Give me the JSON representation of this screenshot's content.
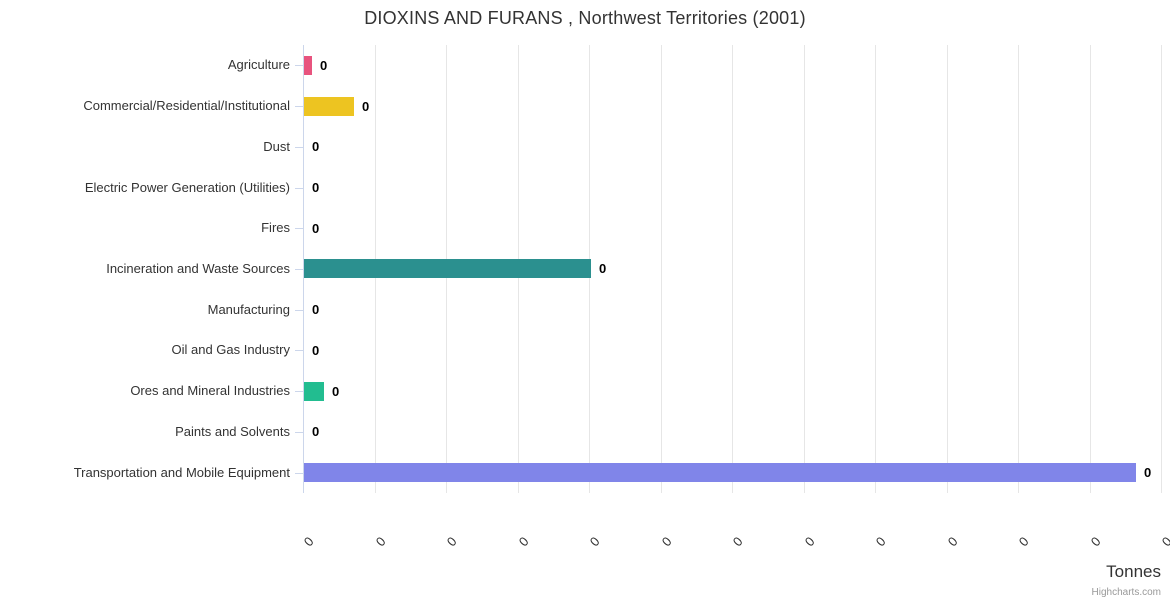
{
  "chart_data": {
    "type": "bar",
    "title": "DIOXINS AND FURANS , Northwest Territories (2001)",
    "xlabel": "Tonnes",
    "ylabel": "",
    "legend": "none",
    "grid": "vertical",
    "categories": [
      "Agriculture",
      "Commercial/Residential/Institutional",
      "Dust",
      "Electric Power Generation (Utilities)",
      "Fires",
      "Incineration and Waste Sources",
      "Manufacturing",
      "Oil and Gas Industry",
      "Ores and Mineral Industries",
      "Paints and Solvents",
      "Transportation and Mobile Equipment"
    ],
    "points": [
      {
        "category": "Agriculture",
        "value_label": "0",
        "bar_fraction": 0.009,
        "color": "#e8537e"
      },
      {
        "category": "Commercial/Residential/Institutional",
        "value_label": "0",
        "bar_fraction": 0.058,
        "color": "#edc421"
      },
      {
        "category": "Dust",
        "value_label": "0",
        "bar_fraction": 0,
        "color": null
      },
      {
        "category": "Electric Power Generation (Utilities)",
        "value_label": "0",
        "bar_fraction": 0,
        "color": null
      },
      {
        "category": "Fires",
        "value_label": "0",
        "bar_fraction": 0,
        "color": null
      },
      {
        "category": "Incineration and Waste Sources",
        "value_label": "0",
        "bar_fraction": 0.335,
        "color": "#2b908f"
      },
      {
        "category": "Manufacturing",
        "value_label": "0",
        "bar_fraction": 0,
        "color": null
      },
      {
        "category": "Oil and Gas Industry",
        "value_label": "0",
        "bar_fraction": 0,
        "color": null
      },
      {
        "category": "Ores and Mineral Industries",
        "value_label": "0",
        "bar_fraction": 0.023,
        "color": "#22bd90"
      },
      {
        "category": "Paints and Solvents",
        "value_label": "0",
        "bar_fraction": 0,
        "color": null
      },
      {
        "category": "Transportation and Mobile Equipment",
        "value_label": "0",
        "bar_fraction": 0.97,
        "color": "#8085e9"
      }
    ],
    "value_axis": {
      "tick_labels": [
        "0",
        "0",
        "0",
        "0",
        "0",
        "0",
        "0",
        "0",
        "0",
        "0",
        "0",
        "0",
        "0"
      ],
      "tick_label_rotation": -45,
      "min_label": "0",
      "max_label": "0"
    },
    "colors": {
      "title_text": "#333333",
      "label_text": "#333333",
      "data_label_text": "#000000",
      "gridline": "#e6e6e6",
      "axis_line": "#ccd6eb"
    }
  },
  "credit": "Highcharts.com"
}
